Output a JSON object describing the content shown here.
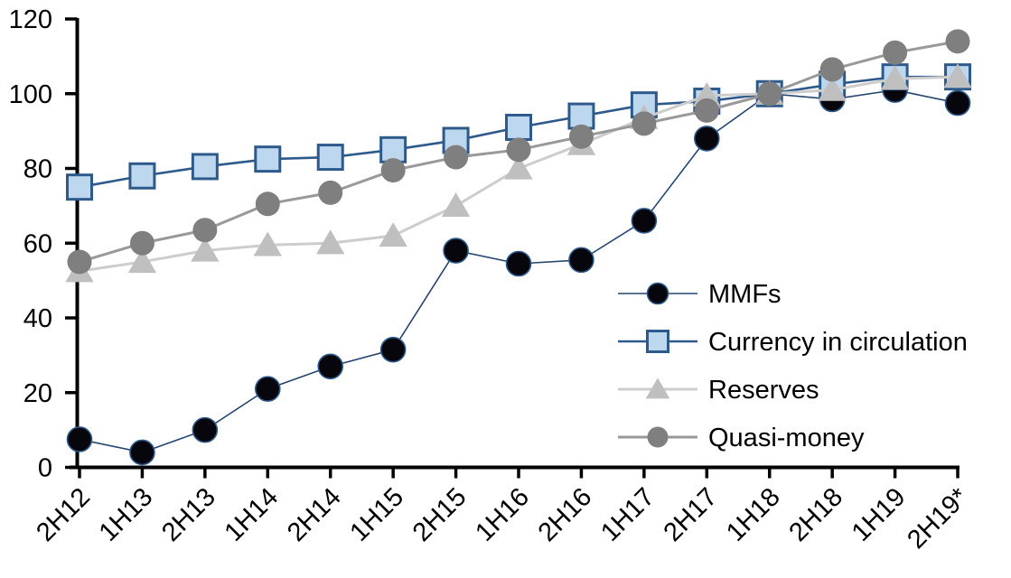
{
  "chart_data": {
    "type": "line",
    "title": "",
    "xlabel": "",
    "ylabel": "",
    "ylim": [
      0,
      120
    ],
    "yticks": [
      0,
      20,
      40,
      60,
      80,
      100,
      120
    ],
    "grid": false,
    "legend_position": "inside-right",
    "x_label_rotation": -45,
    "categories": [
      "2H12",
      "1H13",
      "2H13",
      "1H14",
      "2H14",
      "1H15",
      "2H15",
      "1H16",
      "2H16",
      "1H17",
      "2H17",
      "1H18",
      "2H18",
      "1H19",
      "2H19*"
    ],
    "series": [
      {
        "name": "MMFs",
        "marker": "circle",
        "line_color": "#24456e",
        "line_width": 1.6,
        "marker_fill": "#06060c",
        "marker_stroke": "#2e5a8b",
        "marker_stroke_width": 1.6,
        "values": [
          7.5,
          4,
          10,
          21,
          27,
          31.5,
          58,
          54.5,
          55.5,
          66,
          88,
          100,
          98.5,
          101,
          97.5
        ]
      },
      {
        "name": "Currency in circulation",
        "marker": "square",
        "line_color": "#2e5a8b",
        "line_width": 2.6,
        "marker_fill": "#bdd7ee",
        "marker_stroke": "#2e5a8b",
        "marker_stroke_width": 3,
        "values": [
          75,
          78,
          80.5,
          82.5,
          83,
          85,
          87.5,
          91,
          94,
          97,
          98,
          100,
          102.5,
          104.5,
          104.5
        ]
      },
      {
        "name": "Reserves",
        "marker": "triangle",
        "line_color": "#cdcdcd",
        "line_width": 3,
        "marker_fill": "#bfbfbf",
        "marker_stroke": "none",
        "marker_stroke_width": 0,
        "values": [
          52.5,
          55,
          58,
          59.5,
          60,
          62,
          70,
          80,
          86.5,
          93.5,
          99.5,
          100,
          101,
          104,
          104.5
        ]
      },
      {
        "name": "Quasi-money",
        "marker": "circle",
        "line_color": "#999999",
        "line_width": 3,
        "marker_fill": "#7f7f7f",
        "marker_stroke": "none",
        "marker_stroke_width": 0,
        "values": [
          55,
          60,
          63.5,
          70.5,
          73.5,
          79.5,
          83,
          85,
          88.5,
          92,
          95.5,
          100,
          106.5,
          111,
          114
        ]
      }
    ],
    "axis_color": "#000000",
    "text_color": "#000000"
  }
}
